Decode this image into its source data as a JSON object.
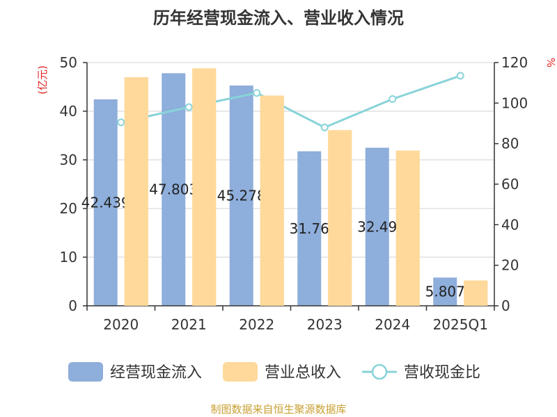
{
  "chart_data": {
    "type": "bar",
    "title": "历年经营现金流入、营业收入情况",
    "categories": [
      "2020",
      "2021",
      "2022",
      "2023",
      "2024",
      "2025Q1"
    ],
    "series": [
      {
        "name": "经营现金流入",
        "type": "bar",
        "axis": "left",
        "color": "#8eaedb",
        "values": [
          42.439,
          47.803,
          45.278,
          31.76,
          32.49,
          5.807
        ],
        "labels": [
          "42.439",
          "47.803",
          "45.278",
          "31.76",
          "32.49",
          "5.807"
        ]
      },
      {
        "name": "营业总收入",
        "type": "bar",
        "axis": "left",
        "color": "#fed99b",
        "values": [
          47.0,
          48.8,
          43.2,
          36.1,
          31.9,
          5.2
        ]
      },
      {
        "name": "营收现金比",
        "type": "line",
        "axis": "right",
        "color": "#88d3d8",
        "values": [
          90.5,
          98.0,
          105.0,
          88.0,
          102.0,
          113.5
        ]
      }
    ],
    "yleft": {
      "label": "(亿元)",
      "ylim": [
        0,
        50
      ],
      "ticks": [
        0,
        10,
        20,
        30,
        40,
        50
      ]
    },
    "yright": {
      "label": "%",
      "ylim": [
        0,
        120
      ],
      "ticks": [
        0,
        20,
        40,
        60,
        80,
        100,
        120
      ]
    },
    "grid": true,
    "legend_position": "bottom"
  },
  "footer": "制图数据来自恒生聚源数据库"
}
